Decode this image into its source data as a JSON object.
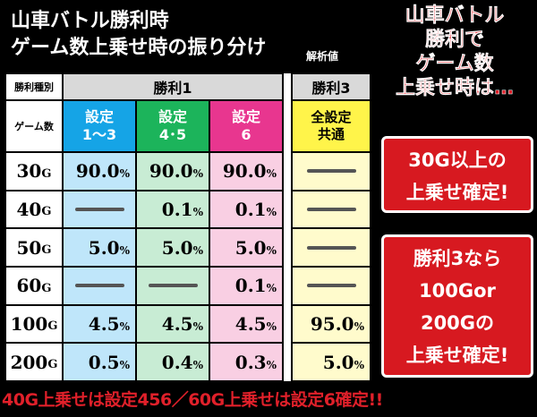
{
  "title": {
    "line1": "山車バトル勝利時",
    "line2": "ゲーム数上乗せ時の振り分け",
    "analysis_label": "解析値"
  },
  "table": {
    "corner_top": "勝利種別",
    "corner_bottom": "ゲーム数",
    "group1": "勝利1",
    "group2": "勝利3",
    "col1": [
      "設定",
      "1〜3"
    ],
    "col2": [
      "設定",
      "4･5"
    ],
    "col3": [
      "設定",
      "6"
    ],
    "col4": [
      "全設定",
      "共通"
    ],
    "rows": [
      {
        "label": "30",
        "unit": "G",
        "v": [
          [
            "90.0",
            "%"
          ],
          [
            "90.0",
            "%"
          ],
          [
            "90.0",
            "%"
          ],
          null
        ]
      },
      {
        "label": "40",
        "unit": "G",
        "v": [
          null,
          [
            "0.1",
            "%"
          ],
          [
            "0.1",
            "%"
          ],
          null
        ]
      },
      {
        "label": "50",
        "unit": "G",
        "v": [
          [
            "5.0",
            "%"
          ],
          [
            "5.0",
            "%"
          ],
          [
            "5.0",
            "%"
          ],
          null
        ]
      },
      {
        "label": "60",
        "unit": "G",
        "v": [
          null,
          null,
          [
            "0.1",
            "%"
          ],
          null
        ]
      },
      {
        "label": "100",
        "unit": "G",
        "v": [
          [
            "4.5",
            "%"
          ],
          [
            "4.5",
            "%"
          ],
          [
            "4.5",
            "%"
          ],
          [
            "95.0",
            "%"
          ]
        ]
      },
      {
        "label": "200",
        "unit": "G",
        "v": [
          [
            "0.5",
            "%"
          ],
          [
            "0.4",
            "%"
          ],
          [
            "0.3",
            "%"
          ],
          [
            "5.0",
            "%"
          ]
        ]
      }
    ]
  },
  "side": {
    "title_lines": [
      "山車バトル",
      "勝利で",
      "ゲーム数",
      "上乗せ時は…"
    ],
    "box1": [
      "30G以上の",
      "上乗せ確定!"
    ],
    "box2": [
      "勝利3なら",
      "100Gor",
      "200Gの",
      "上乗せ確定!"
    ]
  },
  "footer": "40G上乗せは設定456／60G上乗せは設定6確定!!",
  "colors": {
    "blue": "#15a4e6",
    "green": "#1cb45b",
    "pink": "#e8368f",
    "yellow": "#fff44a",
    "red": "#d71920"
  }
}
